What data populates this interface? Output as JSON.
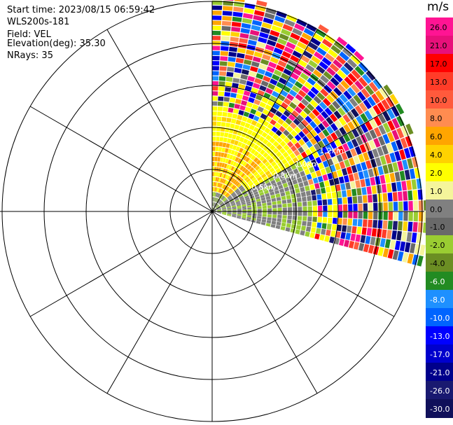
{
  "info": {
    "start_time": "Start time: 2023/08/15 06:59:42",
    "instrument": "WLS200s-181",
    "field": "Field: VEL",
    "elevation": "Elevation(deg): 35.30",
    "nrays": "NRays: 35"
  },
  "colorbar": {
    "unit": "m/s",
    "ticks": [
      "26.0",
      "21.0",
      "17.0",
      "13.0",
      "10.0",
      "8.0",
      "6.0",
      "4.0",
      "2.0",
      "1.0",
      "0.0",
      "-1.0",
      "-2.0",
      "-4.0",
      "-6.0",
      "-8.0",
      "-10.0",
      "-13.0",
      "-17.0",
      "-21.0",
      "-26.0",
      "-30.0"
    ],
    "colors": [
      "#ff1493",
      "#e8107a",
      "#ff0000",
      "#ff3c28",
      "#ff5a3c",
      "#ff8c50",
      "#ffa500",
      "#ffd200",
      "#ffff00",
      "#f5f59b",
      "#808080",
      "#696969",
      "#9acd32",
      "#6b8e23",
      "#228b22",
      "#1e90ff",
      "#0064ff",
      "#0000ff",
      "#0000cd",
      "#00008b",
      "#191970",
      "#10105a"
    ]
  },
  "chart_data": {
    "type": "ppi",
    "field": "VEL",
    "units": "m/s",
    "elevation_deg": 35.3,
    "n_rays": 35,
    "azimuth_range_deg": [
      0,
      105
    ],
    "range_ring_labels": [
      "0.6km",
      "0.8km",
      "1.0km",
      "1.2km"
    ],
    "color_scale": [
      -30,
      -26,
      -21,
      -17,
      -13,
      -10,
      -8,
      -6,
      -4,
      -2,
      -1,
      0,
      1,
      2,
      4,
      6,
      8,
      10,
      13,
      17,
      21,
      26
    ]
  }
}
